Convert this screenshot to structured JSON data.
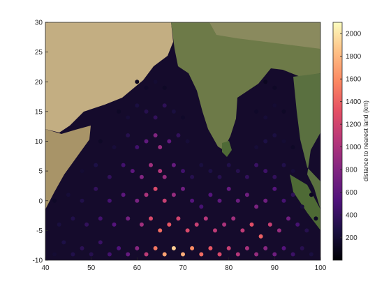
{
  "chart_data": {
    "type": "scatter",
    "title": "",
    "xlabel": "",
    "ylabel": "",
    "xlim": [
      40,
      100
    ],
    "ylim": [
      -10,
      30
    ],
    "xticks": [
      40,
      50,
      60,
      70,
      80,
      90,
      100
    ],
    "yticks": [
      -10,
      -5,
      0,
      5,
      10,
      15,
      20,
      25,
      30
    ],
    "background": "satellite map of the Indian Ocean region",
    "colorbar": {
      "label": "distance to nearest land (km)",
      "range": [
        0,
        2100
      ],
      "ticks": [
        200,
        400,
        600,
        800,
        1000,
        1200,
        1400,
        1600,
        1800,
        2000
      ],
      "colormap": "magma",
      "placement": "right"
    },
    "points": [
      [
        42,
        -9,
        200
      ],
      [
        44,
        -7,
        280
      ],
      [
        46,
        -9,
        300
      ],
      [
        48,
        -8,
        350
      ],
      [
        50,
        -9,
        320
      ],
      [
        52,
        -7,
        420
      ],
      [
        54,
        -9,
        460
      ],
      [
        56,
        -8,
        520
      ],
      [
        58,
        -9,
        640
      ],
      [
        60,
        -8,
        820
      ],
      [
        62,
        -9,
        1100
      ],
      [
        64,
        -8,
        1500
      ],
      [
        66,
        -9,
        1700
      ],
      [
        68,
        -8,
        1900
      ],
      [
        70,
        -9,
        1750
      ],
      [
        72,
        -8,
        1600
      ],
      [
        74,
        -9,
        1450
      ],
      [
        76,
        -8,
        1350
      ],
      [
        78,
        -9,
        1250
      ],
      [
        80,
        -8,
        1150
      ],
      [
        82,
        -9,
        1050
      ],
      [
        84,
        -8,
        980
      ],
      [
        86,
        -9,
        900
      ],
      [
        88,
        -8,
        820
      ],
      [
        90,
        -9,
        700
      ],
      [
        92,
        -8,
        560
      ],
      [
        94,
        -9,
        430
      ],
      [
        96,
        -8,
        330
      ],
      [
        98,
        -9,
        250
      ],
      [
        43,
        -4,
        250
      ],
      [
        46,
        -3,
        300
      ],
      [
        49,
        -4,
        380
      ],
      [
        52,
        -3,
        460
      ],
      [
        55,
        -4,
        560
      ],
      [
        58,
        -3,
        720
      ],
      [
        61,
        -4,
        950
      ],
      [
        63,
        -3,
        1250
      ],
      [
        65,
        -5,
        1450
      ],
      [
        67,
        -4,
        1350
      ],
      [
        69,
        -3,
        1200
      ],
      [
        71,
        -5,
        1250
      ],
      [
        73,
        -4,
        1150
      ],
      [
        75,
        -3,
        1050
      ],
      [
        77,
        -5,
        1100
      ],
      [
        79,
        -4,
        1000
      ],
      [
        81,
        -3,
        950
      ],
      [
        83,
        -5,
        1100
      ],
      [
        85,
        -4,
        1300
      ],
      [
        87,
        -6,
        1400
      ],
      [
        89,
        -4,
        1150
      ],
      [
        91,
        -5,
        900
      ],
      [
        93,
        -3,
        700
      ],
      [
        95,
        -4,
        480
      ],
      [
        97,
        -5,
        320
      ],
      [
        99,
        -3,
        150
      ],
      [
        42,
        0,
        150
      ],
      [
        45,
        1,
        220
      ],
      [
        48,
        0,
        300
      ],
      [
        51,
        2,
        380
      ],
      [
        54,
        0,
        480
      ],
      [
        57,
        1,
        600
      ],
      [
        60,
        0,
        750
      ],
      [
        62,
        1,
        1000
      ],
      [
        64,
        2,
        1250
      ],
      [
        66,
        0,
        1150
      ],
      [
        68,
        1,
        900
      ],
      [
        70,
        2,
        700
      ],
      [
        72,
        0,
        560
      ],
      [
        74,
        -1,
        480
      ],
      [
        76,
        1,
        560
      ],
      [
        78,
        0,
        620
      ],
      [
        80,
        2,
        640
      ],
      [
        82,
        0,
        680
      ],
      [
        84,
        1,
        700
      ],
      [
        86,
        -1,
        760
      ],
      [
        88,
        0,
        700
      ],
      [
        90,
        2,
        560
      ],
      [
        92,
        0,
        480
      ],
      [
        94,
        1,
        360
      ],
      [
        96,
        -1,
        230
      ],
      [
        98,
        1,
        120
      ],
      [
        48,
        5,
        200
      ],
      [
        51,
        6,
        280
      ],
      [
        54,
        4,
        380
      ],
      [
        57,
        6,
        460
      ],
      [
        59,
        5,
        600
      ],
      [
        61,
        4,
        800
      ],
      [
        63,
        6,
        950
      ],
      [
        65,
        5,
        1050
      ],
      [
        66,
        4,
        900
      ],
      [
        68,
        6,
        650
      ],
      [
        70,
        5,
        450
      ],
      [
        72,
        4,
        320
      ],
      [
        74,
        6,
        250
      ],
      [
        76,
        5,
        280
      ],
      [
        78,
        4,
        320
      ],
      [
        80,
        6,
        300
      ],
      [
        82,
        5,
        320
      ],
      [
        84,
        4,
        380
      ],
      [
        86,
        6,
        420
      ],
      [
        88,
        5,
        440
      ],
      [
        90,
        4,
        380
      ],
      [
        92,
        6,
        300
      ],
      [
        94,
        5,
        220
      ],
      [
        52,
        10,
        150
      ],
      [
        55,
        9,
        230
      ],
      [
        58,
        11,
        320
      ],
      [
        60,
        9,
        450
      ],
      [
        62,
        10,
        620
      ],
      [
        64,
        11,
        800
      ],
      [
        65,
        9,
        900
      ],
      [
        67,
        10,
        620
      ],
      [
        69,
        11,
        380
      ],
      [
        71,
        10,
        220
      ],
      [
        86,
        9,
        220
      ],
      [
        88,
        10,
        280
      ],
      [
        90,
        11,
        260
      ],
      [
        92,
        10,
        200
      ],
      [
        94,
        9,
        150
      ],
      [
        56,
        15,
        150
      ],
      [
        58,
        14,
        220
      ],
      [
        60,
        16,
        260
      ],
      [
        62,
        15,
        320
      ],
      [
        64,
        14,
        380
      ],
      [
        66,
        16,
        360
      ],
      [
        68,
        15,
        250
      ],
      [
        70,
        14,
        160
      ],
      [
        86,
        15,
        160
      ],
      [
        88,
        14,
        220
      ],
      [
        90,
        16,
        200
      ],
      [
        92,
        15,
        150
      ],
      [
        60,
        20,
        120
      ],
      [
        62,
        19,
        160
      ],
      [
        64,
        20,
        200
      ],
      [
        66,
        19,
        150
      ],
      [
        88,
        20,
        120
      ],
      [
        90,
        19,
        150
      ]
    ]
  }
}
